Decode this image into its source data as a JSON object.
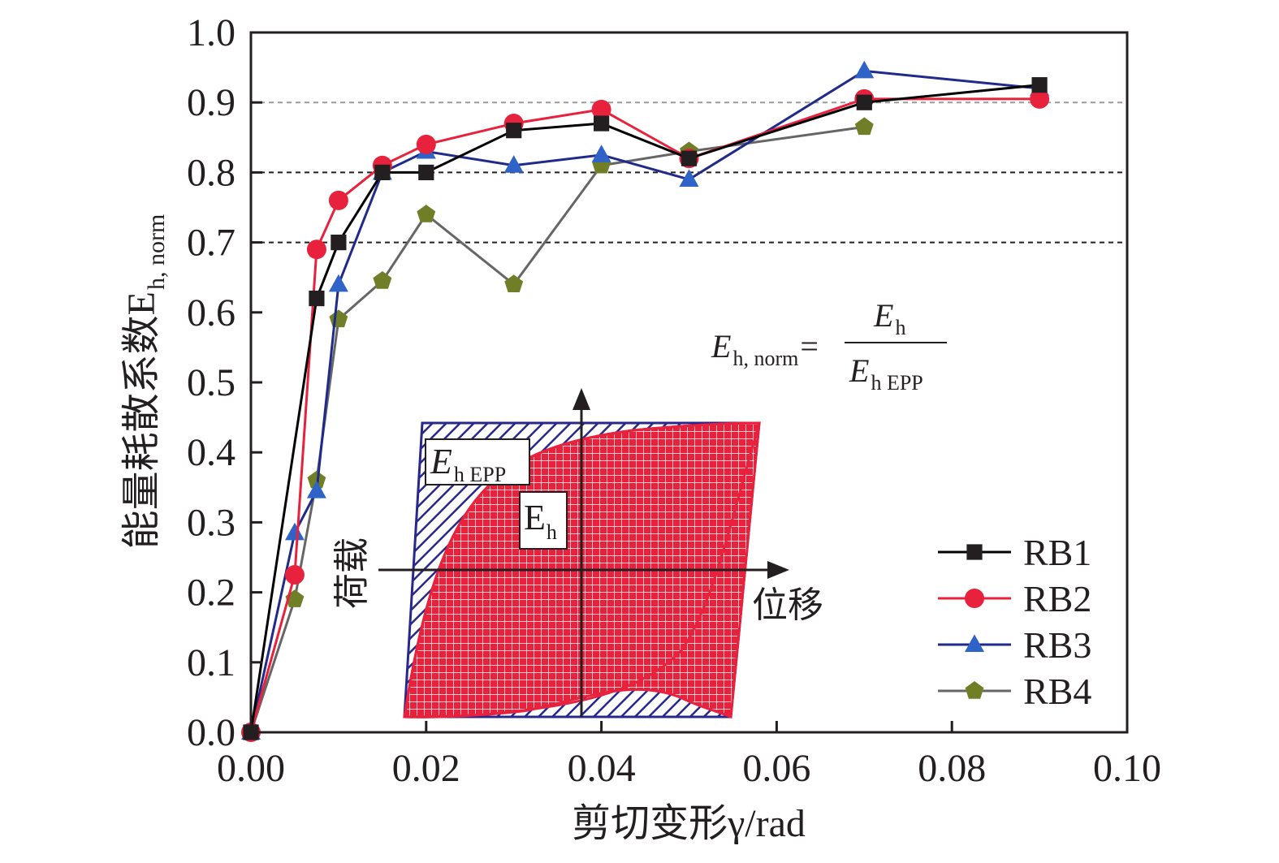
{
  "chart_data": {
    "type": "line",
    "xlabel": "剪切变形γ/rad",
    "ylabel_main": "能量耗散系数E",
    "ylabel_sub": "h, norm",
    "xlim": [
      0,
      0.1
    ],
    "ylim": [
      0,
      1.0
    ],
    "xticks": [
      "0.00",
      "0.02",
      "0.04",
      "0.06",
      "0.08",
      "0.10"
    ],
    "yticks": [
      "0.0",
      "0.1",
      "0.2",
      "0.3",
      "0.4",
      "0.5",
      "0.6",
      "0.7",
      "0.8",
      "0.9",
      "1.0"
    ],
    "reference_lines": [
      0.7,
      0.8,
      0.9
    ],
    "legend_position": "bottom-right",
    "series": [
      {
        "name": "RB1",
        "color": "#000000",
        "marker": "square",
        "fill": "#231f20",
        "x": [
          0,
          0.0075,
          0.01,
          0.015,
          0.02,
          0.03,
          0.04,
          0.05,
          0.07,
          0.09
        ],
        "y": [
          0,
          0.62,
          0.7,
          0.8,
          0.8,
          0.86,
          0.87,
          0.82,
          0.9,
          0.925
        ]
      },
      {
        "name": "RB2",
        "color": "#e8213c",
        "marker": "circle",
        "fill": "#e8213c",
        "x": [
          0,
          0.005,
          0.0075,
          0.01,
          0.015,
          0.02,
          0.03,
          0.04,
          0.05,
          0.07,
          0.09
        ],
        "y": [
          0,
          0.225,
          0.69,
          0.76,
          0.81,
          0.84,
          0.87,
          0.89,
          0.82,
          0.905,
          0.905
        ]
      },
      {
        "name": "RB3",
        "color": "#1f2a8a",
        "marker": "triangle",
        "fill": "#2f63c7",
        "x": [
          0,
          0.005,
          0.0075,
          0.01,
          0.015,
          0.02,
          0.03,
          0.04,
          0.05,
          0.07,
          0.09
        ],
        "y": [
          0,
          0.285,
          0.345,
          0.64,
          0.8,
          0.83,
          0.81,
          0.825,
          0.79,
          0.945,
          0.92
        ]
      },
      {
        "name": "RB4",
        "color": "#666666",
        "marker": "pentagon",
        "fill": "#707f27",
        "x": [
          0,
          0.005,
          0.0075,
          0.01,
          0.015,
          0.02,
          0.03,
          0.04,
          0.05,
          0.07
        ],
        "y": [
          0,
          0.19,
          0.36,
          0.59,
          0.645,
          0.74,
          0.64,
          0.81,
          0.83,
          0.865
        ]
      }
    ],
    "formula": {
      "lhs": "E",
      "lhs_sub": "h, norm",
      "equals": "=",
      "num": "E",
      "num_sub": "h",
      "den": "E",
      "den_sub": "h EPP"
    },
    "inset": {
      "label_epp": "E",
      "label_epp_sub": "h EPP",
      "label_eh": "E",
      "label_eh_sub": "h",
      "y_axis_label": "荷载",
      "x_axis_label": "位移",
      "epp_color": "#28288c",
      "eh_color": "#e8213c"
    }
  }
}
